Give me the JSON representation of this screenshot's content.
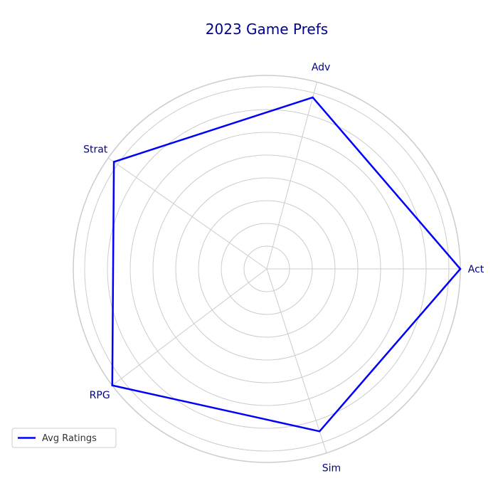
{
  "chart_data": {
    "type": "radar",
    "title": "2023 Game Prefs",
    "categories": [
      "Act",
      "Adv",
      "Strat",
      "RPG",
      "Sim"
    ],
    "angles_deg": [
      0,
      75,
      145,
      217,
      288
    ],
    "series": [
      {
        "name": "Avg Ratings",
        "values": [
          8.5,
          7.8,
          8.2,
          8.5,
          7.5
        ],
        "color": "#0000ff"
      }
    ],
    "rmax": 8.5,
    "ring_step": 1,
    "grid": true,
    "legend_position": "lower-left",
    "colors": {
      "title": "#00008b",
      "labels": "#00008b",
      "grid": "#cccccc",
      "line": "#0000ff"
    }
  }
}
